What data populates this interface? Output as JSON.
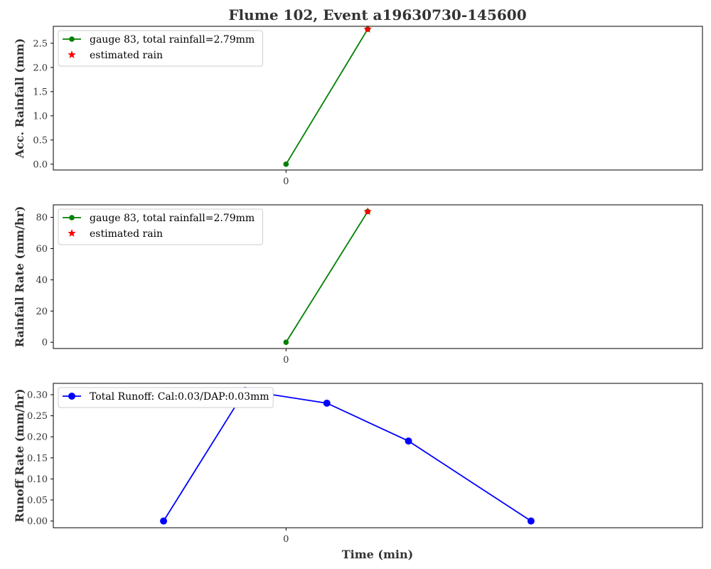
{
  "figure": {
    "title": "Flume 102, Event a19630730-145600",
    "xlabel": "Time (min)"
  },
  "chart_data": [
    {
      "type": "line",
      "ylabel": "Acc. Rainfall (mm)",
      "xlim": [
        -5.7,
        10.2
      ],
      "ylim": [
        -0.12,
        2.85
      ],
      "xticks": [
        0
      ],
      "yticks": [
        0.0,
        0.5,
        1.0,
        1.5,
        2.0,
        2.5
      ],
      "ytick_labels": [
        "0.0",
        "0.5",
        "1.0",
        "1.5",
        "2.0",
        "2.5"
      ],
      "legend_position": "upper-left",
      "series": [
        {
          "name": "gauge 83, total rainfall=2.79mm",
          "kind": "line-marker",
          "color": "#008000",
          "marker": "circle",
          "x": [
            0,
            2
          ],
          "y": [
            0,
            2.79
          ]
        },
        {
          "name": "estimated rain",
          "kind": "marker",
          "color": "#ff0000",
          "marker": "star",
          "x": [
            2
          ],
          "y": [
            2.79
          ]
        }
      ]
    },
    {
      "type": "line",
      "ylabel": "Rainfall Rate (mm/hr)",
      "xlim": [
        -5.7,
        10.2
      ],
      "ylim": [
        -4,
        88
      ],
      "xticks": [
        0
      ],
      "yticks": [
        0,
        20,
        40,
        60,
        80
      ],
      "ytick_labels": [
        "0",
        "20",
        "40",
        "60",
        "80"
      ],
      "legend_position": "upper-left",
      "series": [
        {
          "name": "gauge 83, total rainfall=2.79mm",
          "kind": "line-marker",
          "color": "#008000",
          "marker": "circle",
          "x": [
            0,
            2
          ],
          "y": [
            0,
            83.7
          ]
        },
        {
          "name": "estimated rain",
          "kind": "marker",
          "color": "#ff0000",
          "marker": "star",
          "x": [
            2
          ],
          "y": [
            83.7
          ]
        }
      ]
    },
    {
      "type": "line",
      "ylabel": "Runoff Rate (mm/hr)",
      "xlim": [
        -5.7,
        10.2
      ],
      "ylim": [
        -0.016,
        0.327
      ],
      "xticks": [
        0
      ],
      "yticks": [
        0.0,
        0.05,
        0.1,
        0.15,
        0.2,
        0.25,
        0.3
      ],
      "ytick_labels": [
        "0.00",
        "0.05",
        "0.10",
        "0.15",
        "0.20",
        "0.25",
        "0.30"
      ],
      "legend_position": "upper-left",
      "series": [
        {
          "name": "Total Runoff: Cal:0.03/DAP:0.03mm",
          "kind": "line-marker-large",
          "color": "#0000ff",
          "marker": "circle",
          "x": [
            -3,
            -1,
            1,
            3,
            6
          ],
          "y": [
            0,
            0.31,
            0.28,
            0.19,
            0
          ]
        }
      ]
    }
  ]
}
